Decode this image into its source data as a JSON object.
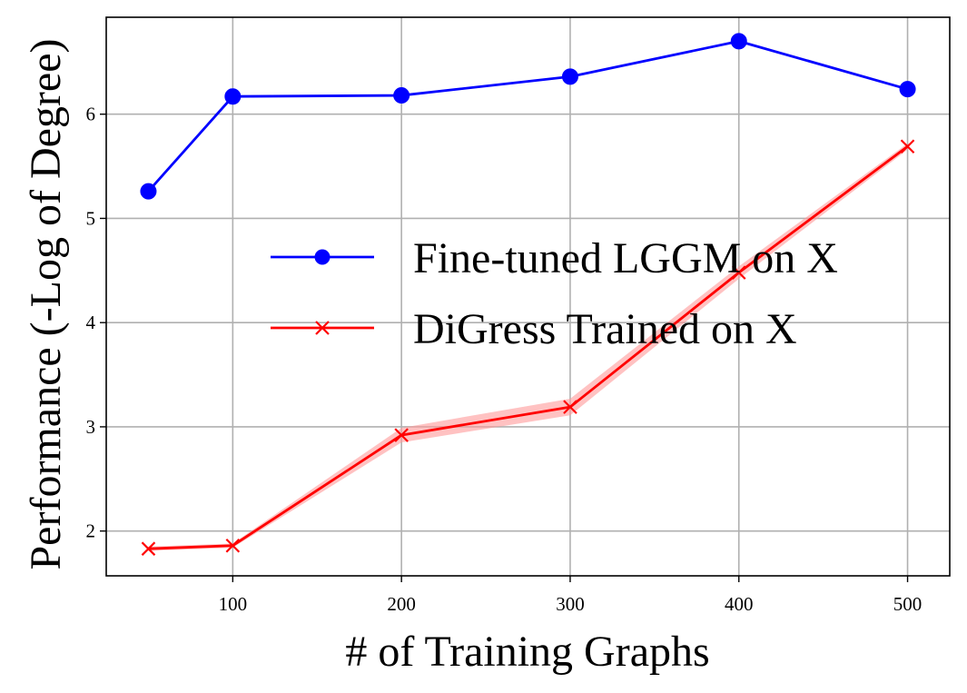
{
  "chart_data": {
    "type": "line",
    "title": "",
    "xlabel": "# of Training Graphs",
    "ylabel": "Performance (-Log of Degree)",
    "x": [
      50,
      100,
      200,
      300,
      400,
      500
    ],
    "xticks": [
      100,
      200,
      300,
      400,
      500
    ],
    "yticks": [
      2,
      3,
      4,
      5,
      6
    ],
    "xlim": [
      25,
      525
    ],
    "ylim": [
      1.57,
      6.93
    ],
    "grid": true,
    "legend_position": "center-right",
    "series": [
      {
        "name": "Fine-tuned LGGM on X",
        "color": "#0000ff",
        "marker": "circle",
        "values": [
          5.26,
          6.17,
          6.18,
          6.36,
          6.7,
          6.24
        ]
      },
      {
        "name": "DiGress Trained on X",
        "color": "#ff0000",
        "marker": "x",
        "values": [
          1.83,
          1.86,
          2.92,
          3.19,
          4.48,
          5.69
        ],
        "band": [
          [
            1.81,
            1.85
          ],
          [
            1.84,
            1.88
          ],
          [
            2.85,
            2.99
          ],
          [
            3.11,
            3.27
          ],
          [
            4.42,
            4.54
          ],
          [
            5.66,
            5.72
          ]
        ],
        "band_color": "#ff9999"
      }
    ]
  }
}
